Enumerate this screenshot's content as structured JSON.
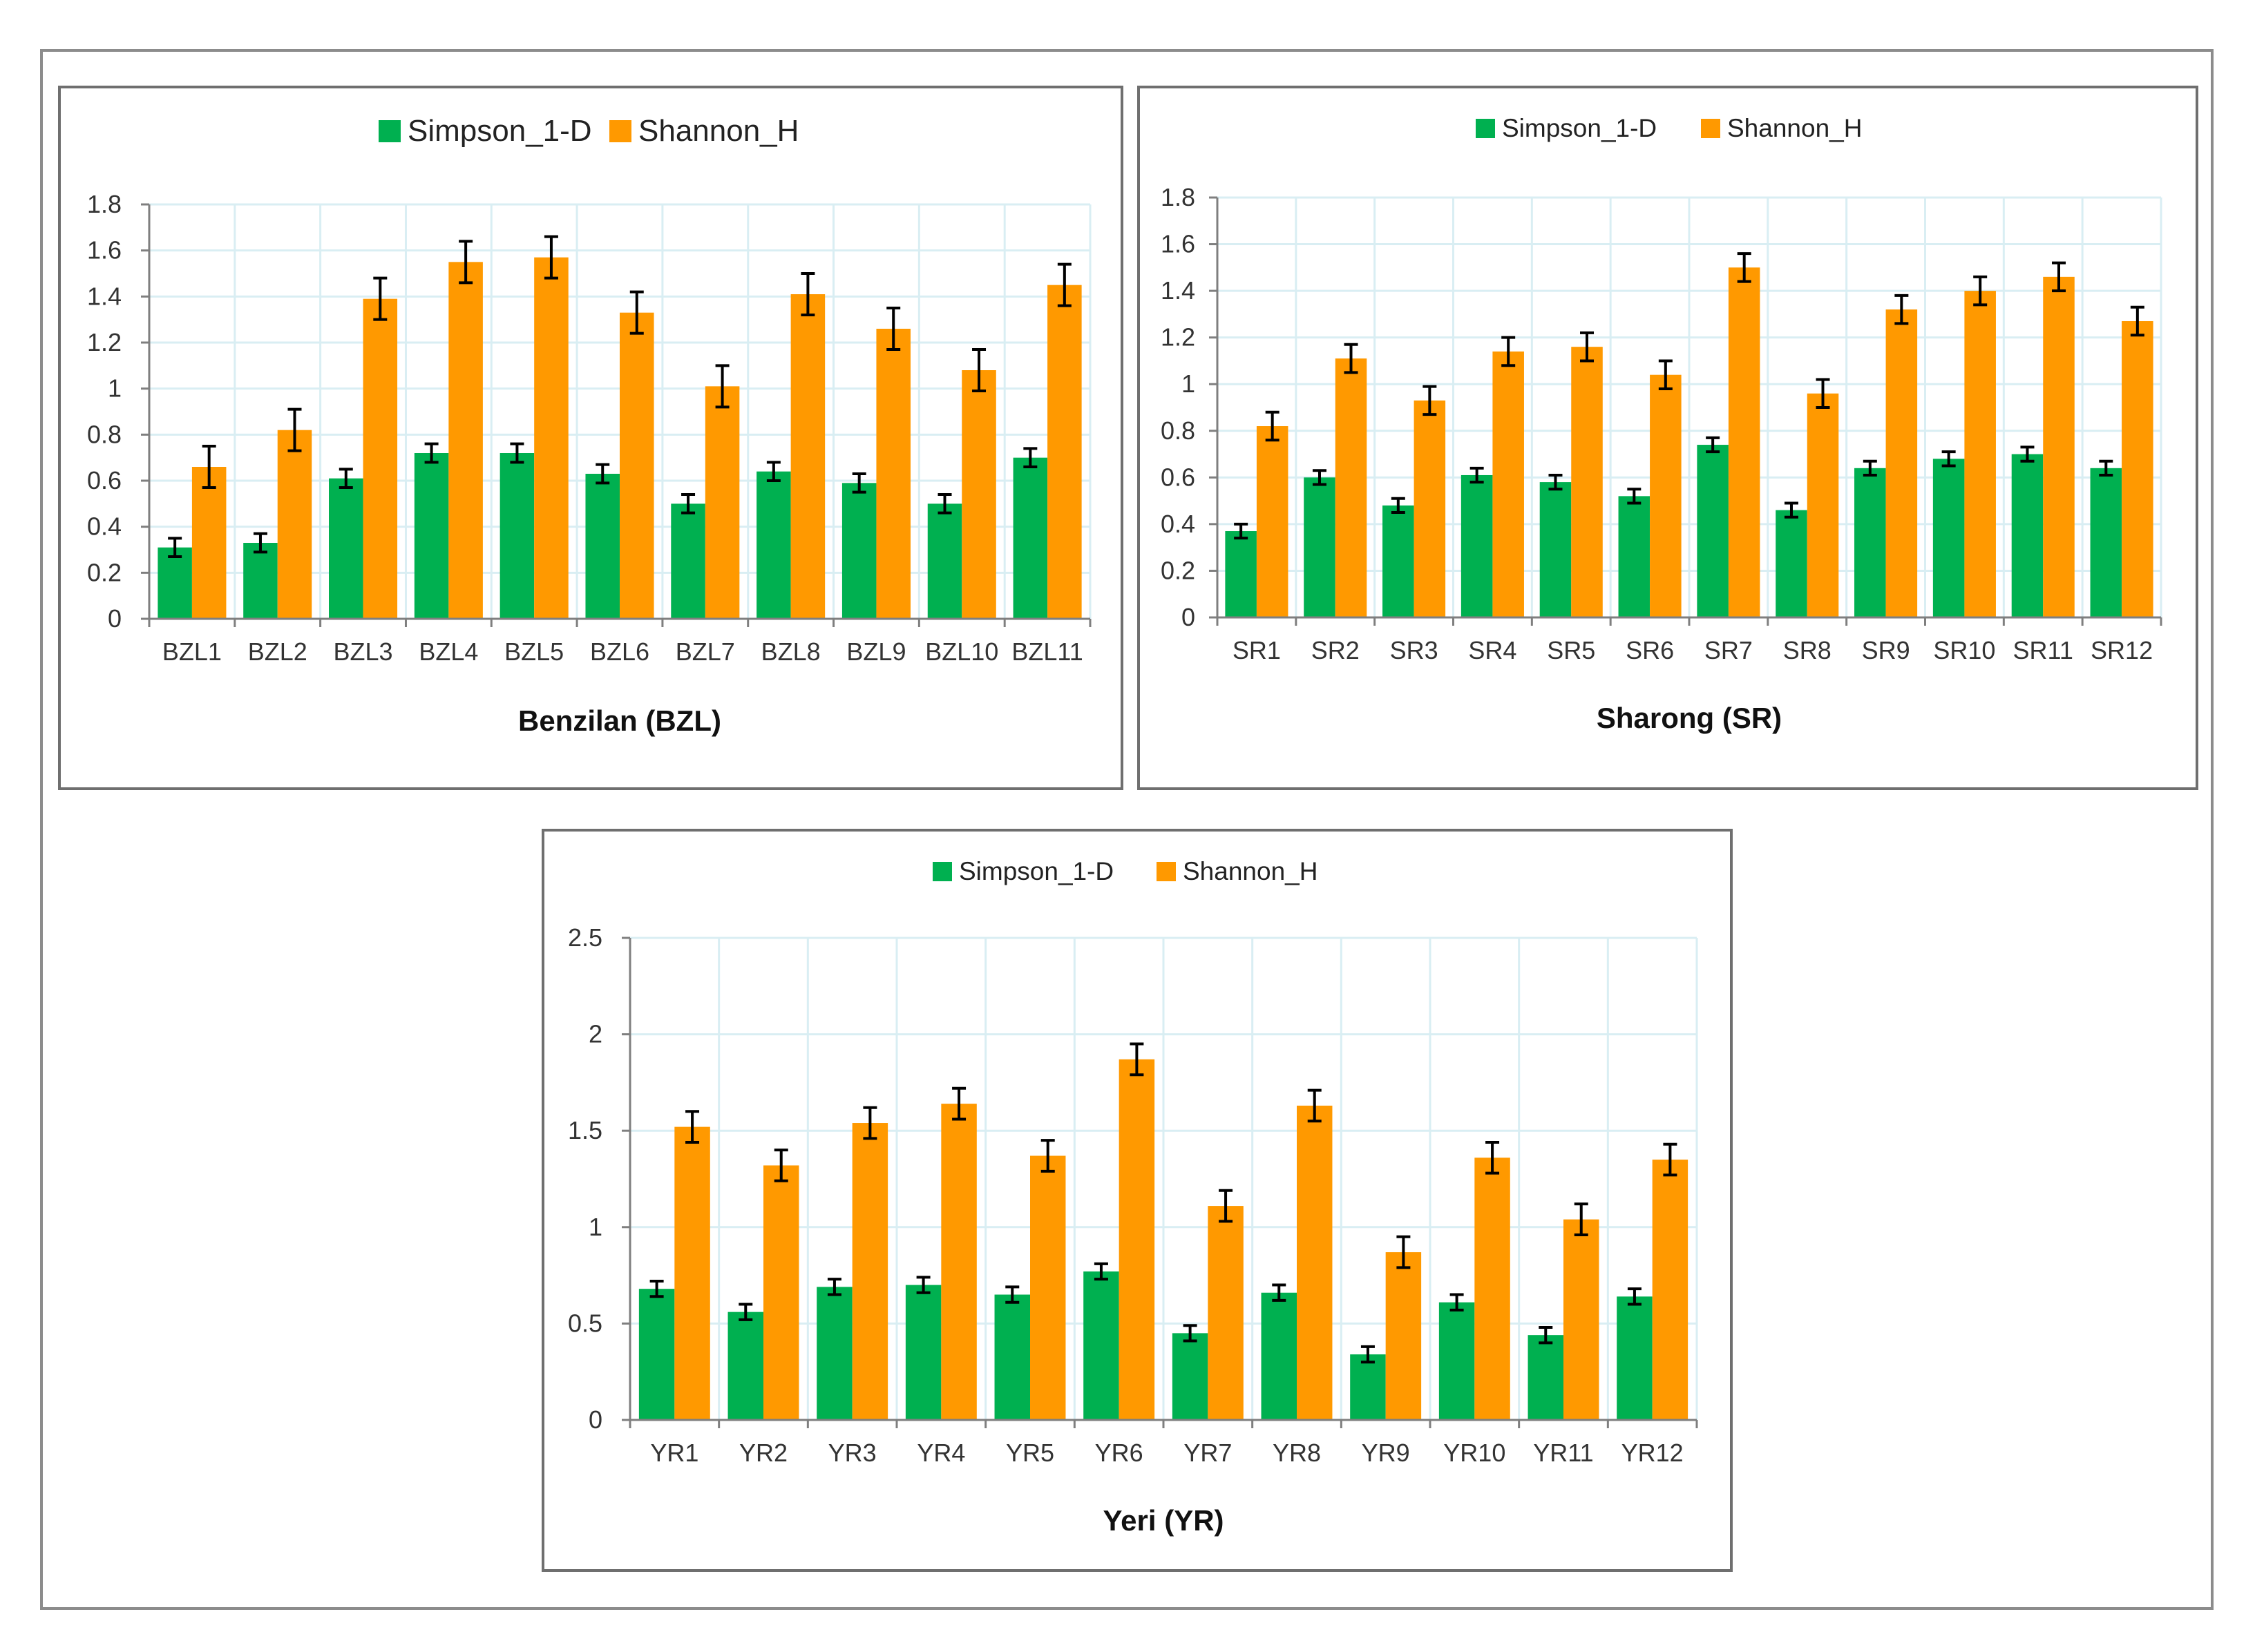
{
  "colors": {
    "simpson": "#00b050",
    "shannon": "#ff9900",
    "grid": "#d9eef3",
    "axis": "#7f7f7f",
    "error_bar": "#000000"
  },
  "chart_data": [
    {
      "type": "bar",
      "title": "",
      "xlabel": "Benzilan (BZL)",
      "ylabel": "",
      "ylim": [
        0,
        1.8
      ],
      "yticks": [
        0,
        0.2,
        0.4,
        0.6,
        0.8,
        1,
        1.2,
        1.4,
        1.6,
        1.8
      ],
      "ytick_labels": [
        "0",
        "0.2",
        "0.4",
        "0.6",
        "0.8",
        "1",
        "1.2",
        "1.4",
        "1.6",
        "1.8"
      ],
      "grid": true,
      "legend_position": "top-center",
      "categories": [
        "BZL1",
        "BZL2",
        "BZL3",
        "BZL4",
        "BZL5",
        "BZL6",
        "BZL7",
        "BZL8",
        "BZL9",
        "BZL10",
        "BZL11"
      ],
      "series": [
        {
          "name": "Simpson_1-D",
          "color_key": "simpson",
          "values": [
            0.31,
            0.33,
            0.61,
            0.72,
            0.72,
            0.63,
            0.5,
            0.64,
            0.59,
            0.5,
            0.7
          ],
          "errors": [
            0.04,
            0.04,
            0.04,
            0.04,
            0.04,
            0.04,
            0.04,
            0.04,
            0.04,
            0.04,
            0.04
          ]
        },
        {
          "name": "Shannon_H",
          "color_key": "shannon",
          "values": [
            0.66,
            0.82,
            1.39,
            1.55,
            1.57,
            1.33,
            1.01,
            1.41,
            1.26,
            1.08,
            1.45
          ],
          "errors": [
            0.09,
            0.09,
            0.09,
            0.09,
            0.09,
            0.09,
            0.09,
            0.09,
            0.09,
            0.09,
            0.09
          ]
        }
      ]
    },
    {
      "type": "bar",
      "title": "",
      "xlabel": "Sharong (SR)",
      "ylabel": "",
      "ylim": [
        0,
        1.8
      ],
      "yticks": [
        0,
        0.2,
        0.4,
        0.6,
        0.8,
        1,
        1.2,
        1.4,
        1.6,
        1.8
      ],
      "ytick_labels": [
        "0",
        "0.2",
        "0.4",
        "0.6",
        "0.8",
        "1",
        "1.2",
        "1.4",
        "1.6",
        "1.8"
      ],
      "grid": true,
      "legend_position": "top-center",
      "categories": [
        "SR1",
        "SR2",
        "SR3",
        "SR4",
        "SR5",
        "SR6",
        "SR7",
        "SR8",
        "SR9",
        "SR10",
        "SR11",
        "SR12"
      ],
      "series": [
        {
          "name": "Simpson_1-D",
          "color_key": "simpson",
          "values": [
            0.37,
            0.6,
            0.48,
            0.61,
            0.58,
            0.52,
            0.74,
            0.46,
            0.64,
            0.68,
            0.7,
            0.64
          ],
          "errors": [
            0.03,
            0.03,
            0.03,
            0.03,
            0.03,
            0.03,
            0.03,
            0.03,
            0.03,
            0.03,
            0.03,
            0.03
          ]
        },
        {
          "name": "Shannon_H",
          "color_key": "shannon",
          "values": [
            0.82,
            1.11,
            0.93,
            1.14,
            1.16,
            1.04,
            1.5,
            0.96,
            1.32,
            1.4,
            1.46,
            1.27
          ],
          "errors": [
            0.06,
            0.06,
            0.06,
            0.06,
            0.06,
            0.06,
            0.06,
            0.06,
            0.06,
            0.06,
            0.06,
            0.06
          ]
        }
      ]
    },
    {
      "type": "bar",
      "title": "",
      "xlabel": "Yeri (YR)",
      "ylabel": "",
      "ylim": [
        0,
        2.5
      ],
      "yticks": [
        0,
        0.5,
        1,
        1.5,
        2,
        2.5
      ],
      "ytick_labels": [
        "0",
        "0.5",
        "1",
        "1.5",
        "2",
        "2.5"
      ],
      "grid": true,
      "legend_position": "top-center",
      "categories": [
        "YR1",
        "YR2",
        "YR3",
        "YR4",
        "YR5",
        "YR6",
        "YR7",
        "YR8",
        "YR9",
        "YR10",
        "YR11",
        "YR12"
      ],
      "series": [
        {
          "name": "Simpson_1-D",
          "color_key": "simpson",
          "values": [
            0.68,
            0.56,
            0.69,
            0.7,
            0.65,
            0.77,
            0.45,
            0.66,
            0.34,
            0.61,
            0.44,
            0.64
          ],
          "errors": [
            0.04,
            0.04,
            0.04,
            0.04,
            0.04,
            0.04,
            0.04,
            0.04,
            0.04,
            0.04,
            0.04,
            0.04
          ]
        },
        {
          "name": "Shannon_H",
          "color_key": "shannon",
          "values": [
            1.52,
            1.32,
            1.54,
            1.64,
            1.37,
            1.87,
            1.11,
            1.63,
            0.87,
            1.36,
            1.04,
            1.35
          ],
          "errors": [
            0.08,
            0.08,
            0.08,
            0.08,
            0.08,
            0.08,
            0.08,
            0.08,
            0.08,
            0.08,
            0.08,
            0.08
          ]
        }
      ]
    }
  ]
}
